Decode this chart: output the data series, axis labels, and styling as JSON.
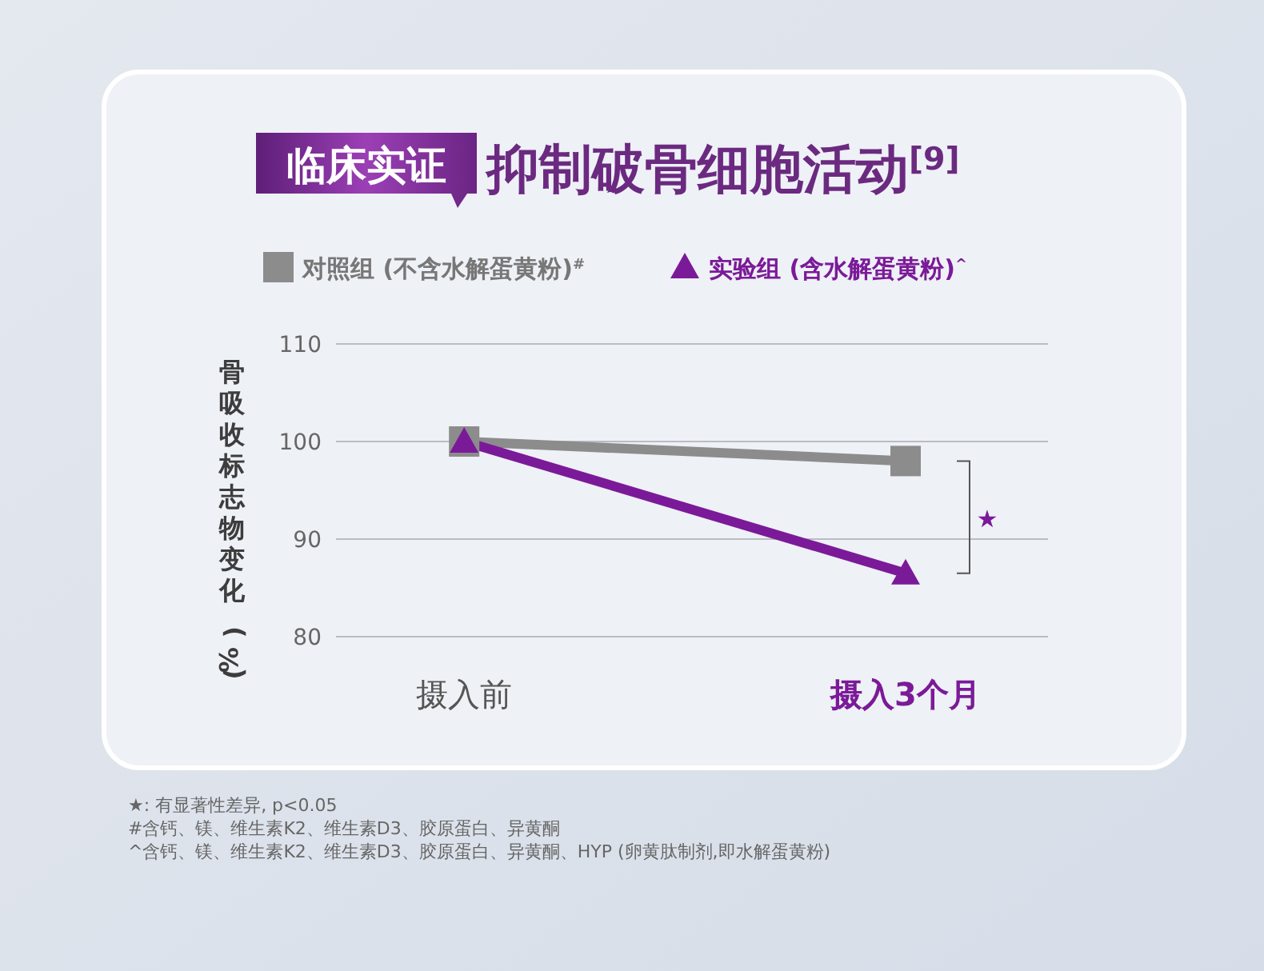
{
  "chart_data": {
    "type": "line",
    "title": "临床实证",
    "subtitle": "抑制破骨细胞活动$^{[9]}$",
    "ylabel": "骨吸收标志物变化 (%)",
    "categories": [
      "摄入前",
      "摄入3个月"
    ],
    "series": [
      {
        "name": "对照组 (不含水解蛋黄粉)$^{#}$",
        "color": "#8c8c8c",
        "marker": "square",
        "values": [
          100,
          98
        ]
      },
      {
        "name": "实验组 (含水解蛋黄粉)$^{^}$",
        "color": "#7b1a98",
        "marker": "triangle",
        "values": [
          100,
          86.5
        ]
      }
    ],
    "ylim": [
      80,
      110
    ],
    "yticks": [
      80,
      90,
      100,
      110
    ],
    "grid": "y",
    "legend": "top",
    "annotations": [
      "★",
      "★: 有显著性差异, p<0.05",
      "#含钙、镁、维生素K2、维生素D3、胶原蛋白、异黄酮",
      "^含钙、镁、维生素K2、维生素D3、胶原蛋白、异黄酮、HYP (卵黄肽制剂,即水解蛋黄粉)"
    ]
  }
}
